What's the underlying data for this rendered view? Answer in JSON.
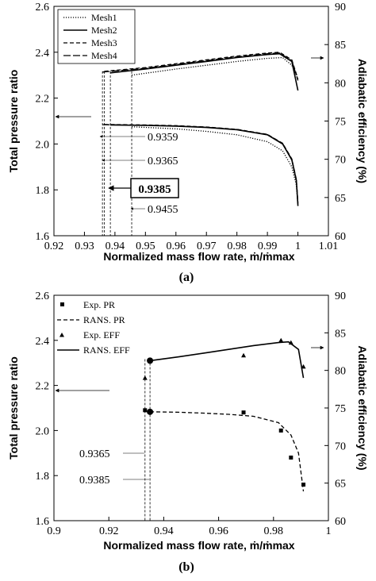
{
  "chart_data": [
    {
      "panel_label": "(a)",
      "type": "line",
      "xlabel": "Normalized mass flow rate, ṁ/ṁmax",
      "ylabel_left": "Total pressure ratio",
      "ylabel_right": "Adiabatic efficiency (%)",
      "xlim": [
        0.92,
        1.01
      ],
      "ylim_left": [
        1.6,
        2.6
      ],
      "ylim_right": [
        60,
        90
      ],
      "xticks": [
        "0.92",
        "0.93",
        "0.94",
        "0.95",
        "0.96",
        "0.97",
        "0.98",
        "0.99",
        "1",
        "1.01"
      ],
      "yticks_left": [
        "1.6",
        "1.8",
        "2.0",
        "2.2",
        "2.4",
        "2.6"
      ],
      "yticks_right": [
        "60",
        "65",
        "70",
        "75",
        "80",
        "85",
        "90"
      ],
      "legend": {
        "placement": "top-left",
        "entries": [
          "Mesh1",
          "Mesh2",
          "Mesh3",
          "Mesh4"
        ]
      },
      "annotations": [
        "0.9359",
        "0.9365",
        "0.9385",
        "0.9455"
      ],
      "highlight": "0.9385",
      "choke_lines_x": [
        0.9359,
        0.9365,
        0.9385,
        0.9455
      ],
      "series": [
        {
          "name": "Mesh1",
          "axis": "left",
          "style": "dotted",
          "x": [
            0.9455,
            0.96,
            0.97,
            0.98,
            0.99,
            0.995,
            0.998,
            0.9995,
            1.0
          ],
          "y": [
            2.075,
            2.066,
            2.055,
            2.04,
            2.01,
            1.97,
            1.9,
            1.82,
            1.73
          ]
        },
        {
          "name": "Mesh2",
          "axis": "left",
          "style": "solid",
          "x": [
            0.9385,
            0.95,
            0.96,
            0.97,
            0.98,
            0.99,
            0.995,
            0.998,
            0.9995,
            1.0
          ],
          "y": [
            2.083,
            2.081,
            2.078,
            2.072,
            2.062,
            2.04,
            2.0,
            1.93,
            1.84,
            1.73
          ]
        },
        {
          "name": "Mesh3",
          "axis": "left",
          "style": "dashed",
          "x": [
            0.9365,
            0.95,
            0.96,
            0.97,
            0.98,
            0.99,
            0.995,
            0.998,
            0.9995,
            1.0
          ],
          "y": [
            2.085,
            2.083,
            2.08,
            2.074,
            2.064,
            2.042,
            2.003,
            1.935,
            1.845,
            1.74
          ]
        },
        {
          "name": "Mesh4",
          "axis": "left",
          "style": "longdash",
          "x": [
            0.9359,
            0.95,
            0.96,
            0.97,
            0.98,
            0.99,
            0.995,
            0.998,
            0.9995,
            1.0
          ],
          "y": [
            2.084,
            2.082,
            2.079,
            2.073,
            2.063,
            2.041,
            2.002,
            1.933,
            1.843,
            1.74
          ]
        },
        {
          "name": "Mesh1",
          "axis": "right",
          "style": "dotted",
          "x": [
            0.9455,
            0.96,
            0.97,
            0.98,
            0.99,
            0.995,
            0.998,
            1.0
          ],
          "y": [
            81.0,
            81.8,
            82.3,
            82.8,
            83.2,
            83.3,
            82.3,
            80.5
          ]
        },
        {
          "name": "Mesh2",
          "axis": "right",
          "style": "solid",
          "x": [
            0.9385,
            0.95,
            0.96,
            0.97,
            0.98,
            0.99,
            0.994,
            0.998,
            1.0
          ],
          "y": [
            81.3,
            81.8,
            82.3,
            82.8,
            83.3,
            83.7,
            83.8,
            82.8,
            79.0
          ]
        },
        {
          "name": "Mesh3",
          "axis": "right",
          "style": "dashed",
          "x": [
            0.9365,
            0.95,
            0.96,
            0.97,
            0.98,
            0.99,
            0.994,
            0.998,
            1.0
          ],
          "y": [
            81.5,
            82.0,
            82.5,
            83.0,
            83.5,
            83.9,
            84.0,
            83.0,
            80.5
          ]
        },
        {
          "name": "Mesh4",
          "axis": "right",
          "style": "longdash",
          "x": [
            0.9359,
            0.95,
            0.96,
            0.97,
            0.98,
            0.99,
            0.994,
            0.998,
            1.0
          ],
          "y": [
            81.4,
            81.9,
            82.4,
            82.9,
            83.4,
            83.8,
            83.9,
            82.9,
            80.3
          ]
        }
      ]
    },
    {
      "panel_label": "(b)",
      "type": "line",
      "xlabel": "Normalized mass flow rate, ṁ/ṁmax",
      "ylabel_left": "Total pressure ratio",
      "ylabel_right": "Adiabatic efficiency (%)",
      "xlim": [
        0.9,
        1.01
      ],
      "ylim_left": [
        1.6,
        2.6
      ],
      "ylim_right": [
        60,
        90
      ],
      "xticks": [
        "0.9",
        "0.92",
        "0.94",
        "0.96",
        "0.98",
        "1"
      ],
      "yticks_left": [
        "1.6",
        "1.8",
        "2.0",
        "2.2",
        "2.4",
        "2.6"
      ],
      "yticks_right": [
        "60",
        "65",
        "70",
        "75",
        "80",
        "85",
        "90"
      ],
      "legend": {
        "placement": "top-left",
        "entries": [
          "Exp. PR",
          "RANS. PR",
          "Exp. EFF",
          "RANS. EFF"
        ]
      },
      "annotations": [
        "0.9365",
        "0.9385"
      ],
      "choke_lines_x": [
        0.9365,
        0.9385
      ],
      "series": [
        {
          "name": "Exp. PR",
          "axis": "left",
          "style": "square-marker",
          "x": [
            0.9365,
            0.976,
            0.991,
            0.995,
            1.0
          ],
          "y": [
            2.09,
            2.08,
            2.0,
            1.88,
            1.76
          ]
        },
        {
          "name": "RANS. PR",
          "axis": "left",
          "style": "dashed",
          "x": [
            0.9385,
            0.95,
            0.96,
            0.97,
            0.98,
            0.99,
            0.995,
            0.998,
            1.0
          ],
          "y": [
            2.083,
            2.081,
            2.077,
            2.072,
            2.063,
            2.035,
            1.98,
            1.9,
            1.73
          ]
        },
        {
          "name": "Exp. EFF",
          "axis": "right",
          "style": "triangle-marker",
          "x": [
            0.9365,
            0.976,
            0.991,
            0.995,
            1.0
          ],
          "y": [
            79.0,
            82.0,
            84.0,
            83.7,
            80.5
          ]
        },
        {
          "name": "RANS. EFF",
          "axis": "right",
          "style": "solid",
          "x": [
            0.9385,
            0.95,
            0.96,
            0.97,
            0.98,
            0.99,
            0.994,
            0.998,
            1.0
          ],
          "y": [
            81.3,
            81.8,
            82.3,
            82.8,
            83.3,
            83.7,
            83.8,
            82.8,
            79.0
          ]
        }
      ],
      "highlight_points": [
        {
          "axis": "left",
          "x": 0.9385,
          "y": 2.083
        },
        {
          "axis": "right",
          "x": 0.9385,
          "y": 81.3
        }
      ]
    }
  ]
}
